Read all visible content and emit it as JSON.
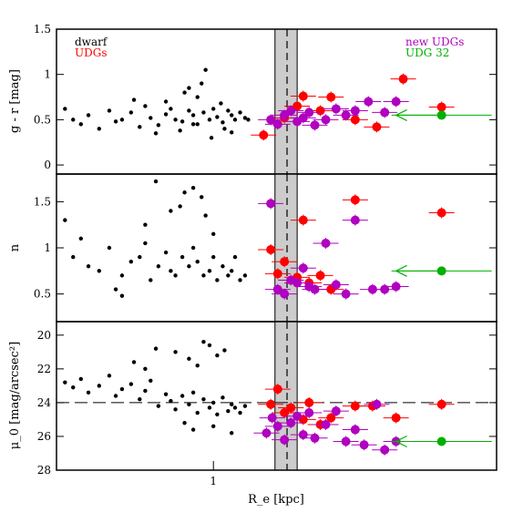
{
  "chart_data": [
    {
      "type": "scatter",
      "xlabel": "",
      "ylabel": "g - r [mag]",
      "x_scale": "log",
      "xlim": [
        0.44,
        4.4
      ],
      "ylim": [
        -0.1,
        1.5
      ],
      "y_ticks": [
        0,
        0.5,
        1,
        1.5
      ],
      "y_tick_labels": [
        "0",
        "0.5",
        "1",
        "1.5"
      ],
      "legend_left": [
        {
          "label": "dwarf",
          "color": "#000000"
        },
        {
          "label": "UDGs",
          "color": "#ff0000"
        }
      ],
      "legend_right": [
        {
          "label": "new UDGs",
          "color": "#b000c0"
        },
        {
          "label": "UDG 32",
          "color": "#00b000"
        }
      ],
      "series": [
        {
          "name": "dwarf",
          "color": "#000000",
          "marker": "small-dot",
          "x": [
            0.46,
            0.48,
            0.5,
            0.52,
            0.55,
            0.58,
            0.6,
            0.62,
            0.65,
            0.68,
            0.7,
            0.72,
            0.75,
            0.78,
            0.8,
            0.82,
            0.85,
            0.88,
            0.9,
            0.92,
            0.95,
            0.98,
            1.0,
            1.02,
            1.05,
            1.08,
            1.1,
            1.12,
            1.15,
            1.18,
            1.2,
            0.74,
            0.84,
            0.99,
            1.1,
            0.66,
            0.92,
            1.04,
            0.86,
            0.94,
            0.78,
            0.96,
            0.9,
            1.06,
            0.88
          ],
          "y": [
            0.62,
            0.5,
            0.45,
            0.55,
            0.4,
            0.6,
            0.48,
            0.5,
            0.58,
            0.42,
            0.65,
            0.52,
            0.44,
            0.56,
            0.62,
            0.5,
            0.48,
            0.6,
            0.55,
            0.45,
            0.58,
            0.5,
            0.62,
            0.53,
            0.47,
            0.6,
            0.55,
            0.5,
            0.58,
            0.52,
            0.5,
            0.35,
            0.38,
            0.3,
            0.36,
            0.72,
            0.75,
            0.68,
            0.8,
            0.9,
            0.7,
            1.05,
            0.45,
            0.4,
            0.85
          ]
        },
        {
          "name": "UDGs",
          "color": "#ff0000",
          "marker": "large-dot",
          "x": [
            1.3,
            1.45,
            1.55,
            1.6,
            1.75,
            1.85,
            2.1,
            2.35,
            2.7,
            3.3
          ],
          "y": [
            0.33,
            0.52,
            0.65,
            0.76,
            0.6,
            0.75,
            0.5,
            0.42,
            0.95,
            0.64
          ]
        },
        {
          "name": "new UDGs",
          "color": "#b000c0",
          "marker": "large-dot",
          "x": [
            1.35,
            1.4,
            1.45,
            1.5,
            1.55,
            1.6,
            1.65,
            1.7,
            1.8,
            1.9,
            2.0,
            2.1,
            2.25,
            2.45,
            2.6
          ],
          "y": [
            0.5,
            0.45,
            0.55,
            0.6,
            0.48,
            0.52,
            0.58,
            0.44,
            0.5,
            0.62,
            0.55,
            0.6,
            0.7,
            0.58,
            0.7
          ]
        },
        {
          "name": "UDG 32",
          "color": "#00b000",
          "marker": "large-dot",
          "x": [
            3.3
          ],
          "y": [
            0.55
          ]
        }
      ],
      "reference_lines": [],
      "shaded_band_x": [
        1.38,
        1.55
      ],
      "dashed_vline_x": 1.47,
      "grid": false
    },
    {
      "type": "scatter",
      "xlabel": "",
      "ylabel": "n",
      "x_scale": "log",
      "xlim": [
        0.44,
        4.4
      ],
      "ylim": [
        0.2,
        1.8
      ],
      "y_ticks": [
        0.5,
        1,
        1.5
      ],
      "y_tick_labels": [
        "0.5",
        "1",
        "1.5"
      ],
      "series": [
        {
          "name": "dwarf",
          "color": "#000000",
          "marker": "small-dot",
          "x": [
            0.46,
            0.48,
            0.5,
            0.52,
            0.55,
            0.58,
            0.6,
            0.62,
            0.65,
            0.68,
            0.7,
            0.72,
            0.75,
            0.78,
            0.8,
            0.82,
            0.85,
            0.88,
            0.9,
            0.92,
            0.95,
            0.98,
            1.0,
            1.02,
            1.05,
            1.08,
            1.1,
            1.12,
            1.15,
            1.18,
            0.74,
            0.86,
            0.9,
            0.94,
            0.84,
            0.8,
            0.96,
            0.7,
            1.0,
            0.62
          ],
          "y": [
            1.3,
            0.9,
            1.1,
            0.8,
            0.75,
            1.0,
            0.55,
            0.7,
            0.85,
            0.9,
            1.05,
            0.65,
            0.8,
            0.95,
            0.75,
            0.7,
            0.9,
            0.8,
            1.0,
            0.85,
            0.7,
            0.75,
            0.9,
            0.65,
            0.8,
            0.7,
            0.75,
            0.9,
            0.65,
            0.7,
            1.72,
            1.6,
            1.65,
            1.55,
            1.45,
            1.4,
            1.35,
            1.25,
            1.15,
            0.48
          ]
        },
        {
          "name": "UDGs",
          "color": "#ff0000",
          "marker": "large-dot",
          "x": [
            1.35,
            1.4,
            1.45,
            1.55,
            1.6,
            1.65,
            1.75,
            1.85,
            2.1,
            3.3
          ],
          "y": [
            0.98,
            0.72,
            0.85,
            0.68,
            1.3,
            0.62,
            0.7,
            0.55,
            1.52,
            1.38
          ]
        },
        {
          "name": "new UDGs",
          "color": "#b000c0",
          "marker": "large-dot",
          "x": [
            1.35,
            1.4,
            1.45,
            1.5,
            1.55,
            1.6,
            1.65,
            1.7,
            1.8,
            1.9,
            2.0,
            2.1,
            2.3,
            2.45,
            2.6
          ],
          "y": [
            1.48,
            0.55,
            0.5,
            0.65,
            0.62,
            0.78,
            0.58,
            0.55,
            1.05,
            0.6,
            0.5,
            1.3,
            0.55,
            0.55,
            0.58
          ]
        },
        {
          "name": "UDG 32",
          "color": "#00b000",
          "marker": "large-dot",
          "x": [
            3.3
          ],
          "y": [
            0.75
          ]
        }
      ],
      "shaded_band_x": [
        1.38,
        1.55
      ],
      "dashed_vline_x": 1.47,
      "grid": false
    },
    {
      "type": "scatter",
      "xlabel": "R_e [kpc]",
      "ylabel": "μ_0 [mag/arcsec²]",
      "x_scale": "log",
      "x_ticks": [
        1
      ],
      "x_tick_labels": [
        "1"
      ],
      "xlim": [
        0.44,
        4.4
      ],
      "ylim": [
        28,
        19.2
      ],
      "y_ticks": [
        20,
        22,
        24,
        26,
        28
      ],
      "y_tick_labels": [
        "20",
        "22",
        "24",
        "26",
        "28"
      ],
      "series": [
        {
          "name": "dwarf",
          "color": "#000000",
          "marker": "small-dot",
          "x": [
            0.46,
            0.48,
            0.5,
            0.52,
            0.55,
            0.58,
            0.6,
            0.62,
            0.65,
            0.68,
            0.7,
            0.72,
            0.75,
            0.78,
            0.8,
            0.82,
            0.85,
            0.88,
            0.9,
            0.92,
            0.95,
            0.98,
            1.0,
            1.02,
            1.05,
            1.08,
            1.1,
            1.12,
            1.15,
            1.18,
            0.74,
            0.82,
            0.88,
            0.92,
            0.95,
            0.98,
            1.02,
            1.06,
            0.7,
            0.66,
            0.86,
            0.9,
            1.0,
            1.1
          ],
          "y": [
            22.8,
            23.1,
            22.6,
            23.4,
            23.0,
            22.4,
            23.6,
            23.2,
            22.9,
            23.8,
            23.3,
            22.7,
            24.2,
            23.5,
            23.9,
            24.4,
            23.6,
            24.1,
            23.4,
            24.6,
            23.8,
            24.3,
            24.0,
            24.7,
            23.7,
            24.5,
            24.1,
            24.3,
            24.6,
            24.2,
            20.8,
            21.0,
            21.4,
            21.8,
            20.4,
            20.6,
            21.2,
            20.9,
            22.0,
            21.6,
            25.2,
            25.6,
            25.4,
            25.8
          ]
        },
        {
          "name": "UDGs",
          "color": "#ff0000",
          "marker": "large-dot",
          "x": [
            1.35,
            1.4,
            1.45,
            1.5,
            1.6,
            1.65,
            1.75,
            1.85,
            2.1,
            2.3,
            2.6,
            3.3
          ],
          "y": [
            24.1,
            23.2,
            24.6,
            24.3,
            25.0,
            24.0,
            25.3,
            24.9,
            24.2,
            24.2,
            24.9,
            24.1
          ]
        },
        {
          "name": "new UDGs",
          "color": "#b000c0",
          "marker": "large-dot",
          "x": [
            1.32,
            1.36,
            1.4,
            1.45,
            1.5,
            1.55,
            1.6,
            1.65,
            1.7,
            1.8,
            1.9,
            2.0,
            2.1,
            2.2,
            2.35,
            2.45,
            2.6
          ],
          "y": [
            25.8,
            24.9,
            25.4,
            26.2,
            25.2,
            24.8,
            25.9,
            24.6,
            26.1,
            25.3,
            24.5,
            26.3,
            25.6,
            26.5,
            24.1,
            26.8,
            26.3
          ]
        },
        {
          "name": "UDG 32",
          "color": "#00b000",
          "marker": "large-dot",
          "x": [
            3.3
          ],
          "y": [
            26.3
          ]
        }
      ],
      "reference_lines": [
        {
          "orientation": "horizontal",
          "value": 24,
          "style": "dashed",
          "color": "#000000"
        }
      ],
      "shaded_band_x": [
        1.38,
        1.55
      ],
      "dashed_vline_x": 1.47,
      "grid": false
    }
  ],
  "arrow": {
    "from_x": 3.3,
    "to_x": 2.6,
    "color": "#00b000",
    "note": "UDG 32 leftward arrow in each panel"
  }
}
